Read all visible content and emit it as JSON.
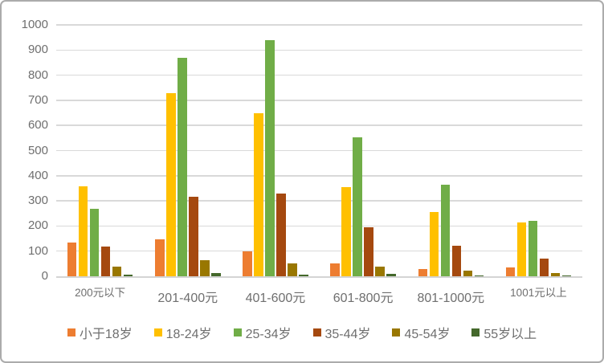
{
  "chart_data": {
    "type": "bar",
    "title": "",
    "categories": [
      "200元以下",
      "201-400元",
      "401-600元",
      "601-800元",
      "801-1000元",
      "1001元以上"
    ],
    "series": [
      {
        "name": "小于18岁",
        "color": "#ED7D31",
        "values": [
          135,
          148,
          100,
          50,
          28,
          36
        ]
      },
      {
        "name": "18-24岁",
        "color": "#FFC000",
        "values": [
          357,
          727,
          650,
          355,
          255,
          213
        ]
      },
      {
        "name": "25-34岁",
        "color": "#70AD47",
        "values": [
          270,
          870,
          940,
          553,
          365,
          222
        ]
      },
      {
        "name": "35-44岁",
        "color": "#A5490F",
        "values": [
          118,
          315,
          330,
          195,
          121,
          71
        ]
      },
      {
        "name": "45-54岁",
        "color": "#997700",
        "values": [
          38,
          65,
          52,
          37,
          22,
          13
        ]
      },
      {
        "name": "55岁以上",
        "color": "#44682B",
        "values": [
          7,
          12,
          8,
          9,
          2,
          2
        ]
      }
    ],
    "y_axis": {
      "min": 0,
      "max": 1000,
      "step": 100,
      "tick_labels": [
        "0",
        "100",
        "200",
        "300",
        "400",
        "500",
        "600",
        "700",
        "800",
        "900",
        "1000"
      ]
    },
    "grid": true,
    "legend_position": "bottom",
    "colors": {
      "gridline": "#D9D9D9",
      "axis_text": "#6F6F6F",
      "frame_border": "#ABABAB",
      "background": "#FFFFFF"
    }
  }
}
